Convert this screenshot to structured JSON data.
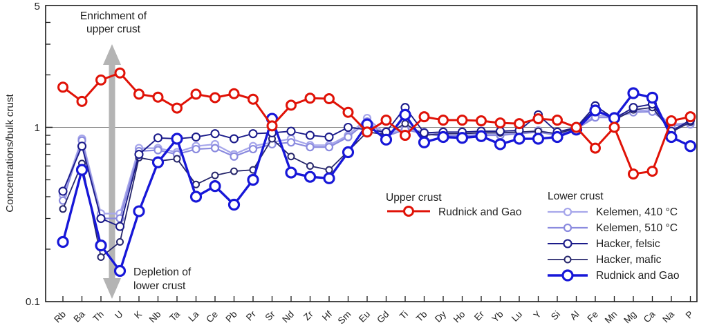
{
  "figure": {
    "y_axis_label": "Concentrations/bulk crust",
    "y_tick_labels": {
      "top": "5",
      "mid": "1",
      "bottom": "0.1"
    },
    "annotations": {
      "enrichment_line1": "Enrichment of",
      "enrichment_line2": "upper crust",
      "depletion_line1": "Depletion of",
      "depletion_line2": "lower crust",
      "arrow_color": "#b4b4b4"
    },
    "legend": {
      "upper_title": "Upper crust",
      "lower_title": "Lower crust"
    }
  },
  "chart_data": {
    "type": "line",
    "yscale": "log",
    "ylim": [
      0.1,
      5
    ],
    "reference_line": 1,
    "ylabel": "Concentrations/bulk crust",
    "grid": "off",
    "legend_position": "inside lower right, two columns",
    "x_categories": [
      "Rb",
      "Ba",
      "Th",
      "U",
      "K",
      "Nb",
      "Ta",
      "La",
      "Ce",
      "Pb",
      "Pr",
      "Sr",
      "Nd",
      "Zr",
      "Hf",
      "Sm",
      "Eu",
      "Gd",
      "Ti",
      "Tb",
      "Dy",
      "Ho",
      "Er",
      "Yb",
      "Lu",
      "Y",
      "Si",
      "Al",
      "Fe",
      "Mn",
      "Mg",
      "Ca",
      "Na",
      "P"
    ],
    "series": [
      {
        "id": "upper-rudnick-gao",
        "group": "Upper crust",
        "label": "Rudnick and Gao",
        "color": "#e01207",
        "line_width": 3,
        "marker_radius": 6.5,
        "marker_stroke": 3,
        "values": [
          1.7,
          1.41,
          1.87,
          2.05,
          1.55,
          1.49,
          1.29,
          1.55,
          1.48,
          1.56,
          1.45,
          1.02,
          1.34,
          1.47,
          1.46,
          1.22,
          0.94,
          1.1,
          0.9,
          1.15,
          1.1,
          1.1,
          1.09,
          1.06,
          1.05,
          1.12,
          1.1,
          1.0,
          0.76,
          1.0,
          0.54,
          0.56,
          1.09,
          1.15
        ]
      },
      {
        "id": "kelemen-410",
        "group": "Lower crust",
        "label": "Kelemen, 410 °C",
        "color": "#a7a7eb",
        "line_width": 2.3,
        "marker_radius": 5,
        "marker_stroke": 2.3,
        "values": [
          0.41,
          0.86,
          0.32,
          0.32,
          0.76,
          0.76,
          0.72,
          0.78,
          0.8,
          0.7,
          0.78,
          0.82,
          0.86,
          0.79,
          0.79,
          0.9,
          1.13,
          0.91,
          0.99,
          0.94,
          0.9,
          0.9,
          0.91,
          0.91,
          0.93,
          0.96,
          0.91,
          0.98,
          1.17,
          1.16,
          1.24,
          1.26,
          1.04,
          1.06
        ]
      },
      {
        "id": "kelemen-510",
        "group": "Lower crust",
        "label": "Kelemen, 510 °C",
        "color": "#8b8bdf",
        "line_width": 2.2,
        "marker_radius": 5,
        "marker_stroke": 2.2,
        "values": [
          0.38,
          0.84,
          0.3,
          0.3,
          0.73,
          0.74,
          0.7,
          0.75,
          0.76,
          0.68,
          0.75,
          0.8,
          0.82,
          0.77,
          0.77,
          0.88,
          1.08,
          0.89,
          0.97,
          0.92,
          0.89,
          0.89,
          0.9,
          0.9,
          0.92,
          0.94,
          0.9,
          0.98,
          1.14,
          1.14,
          1.22,
          1.23,
          1.02,
          1.04
        ]
      },
      {
        "id": "hacker-felsic",
        "group": "Lower crust",
        "label": "Hacker, felsic",
        "color": "#1b1b8a",
        "line_width": 1.9,
        "marker_radius": 5.5,
        "marker_stroke": 2.1,
        "values": [
          0.43,
          0.78,
          0.3,
          0.27,
          0.7,
          0.87,
          0.86,
          0.88,
          0.92,
          0.86,
          0.92,
          0.93,
          0.95,
          0.9,
          0.88,
          1.0,
          0.97,
          0.94,
          1.3,
          0.93,
          0.94,
          0.94,
          0.95,
          0.95,
          0.96,
          1.18,
          0.94,
          1.0,
          1.33,
          1.12,
          1.3,
          1.36,
          0.95,
          1.1
        ]
      },
      {
        "id": "hacker-mafic",
        "group": "Lower crust",
        "label": "Hacker, mafic",
        "color": "#26266b",
        "line_width": 1.8,
        "marker_radius": 4.5,
        "marker_stroke": 2,
        "values": [
          0.34,
          0.62,
          0.18,
          0.22,
          0.67,
          0.64,
          0.66,
          0.47,
          0.53,
          0.56,
          0.57,
          0.86,
          0.68,
          0.6,
          0.57,
          0.73,
          0.94,
          0.91,
          1.05,
          0.9,
          0.92,
          0.92,
          0.93,
          0.93,
          0.94,
          0.95,
          0.92,
          0.99,
          1.28,
          1.1,
          1.26,
          1.3,
          0.94,
          1.07
        ]
      },
      {
        "id": "lower-rudnick-gao",
        "group": "Lower crust",
        "label": "Rudnick and Gao",
        "color": "#1717d8",
        "line_width": 3.4,
        "marker_radius": 7,
        "marker_stroke": 3.2,
        "values": [
          0.22,
          0.57,
          0.21,
          0.15,
          0.33,
          0.63,
          0.86,
          0.4,
          0.46,
          0.36,
          0.5,
          1.12,
          0.55,
          0.52,
          0.51,
          0.72,
          1.04,
          0.85,
          1.18,
          0.82,
          0.88,
          0.87,
          0.89,
          0.8,
          0.86,
          0.86,
          0.88,
          0.97,
          1.25,
          1.13,
          1.57,
          1.48,
          0.88,
          0.78
        ]
      }
    ]
  }
}
